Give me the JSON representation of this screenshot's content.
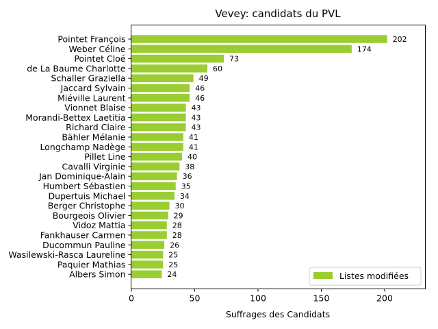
{
  "chart_data": {
    "type": "bar",
    "orientation": "horizontal",
    "title": "Vevey: candidats du PVL",
    "xlabel": "Suffrages des Candidats",
    "ylabel": "",
    "xlim": [
      0,
      233
    ],
    "xticks": [
      0,
      50,
      100,
      150,
      200
    ],
    "grid": false,
    "legend_position": "lower-right",
    "bar_color": "#9acd32",
    "categories": [
      "Pointet François",
      "Weber Céline",
      "Pointet Cloé",
      "de La Baume Charlotte",
      "Schaller Graziella",
      "Jaccard Sylvain",
      "Miéville Laurent",
      "Vionnet Blaise",
      "Morandi-Bettex Laetitia",
      "Richard Claire",
      "Bähler Mélanie",
      "Longchamp Nadège",
      "Pillet Line",
      "Cavalli Virginie",
      "Jan Dominique-Alain",
      "Humbert Sébastien",
      "Dupertuis Michael",
      "Berger Christophe",
      "Bourgeois Olivier",
      "Vidoz Mattia",
      "Fankhauser Carmen",
      "Ducommun Pauline",
      "Wasilewski-Rasca Laureline",
      "Paquier Mathias",
      "Albers Simon"
    ],
    "series": [
      {
        "name": "Listes modifiées",
        "values": [
          202,
          174,
          73,
          60,
          49,
          46,
          46,
          43,
          43,
          43,
          41,
          41,
          40,
          38,
          36,
          35,
          34,
          30,
          29,
          28,
          28,
          26,
          25,
          25,
          24
        ]
      }
    ]
  }
}
